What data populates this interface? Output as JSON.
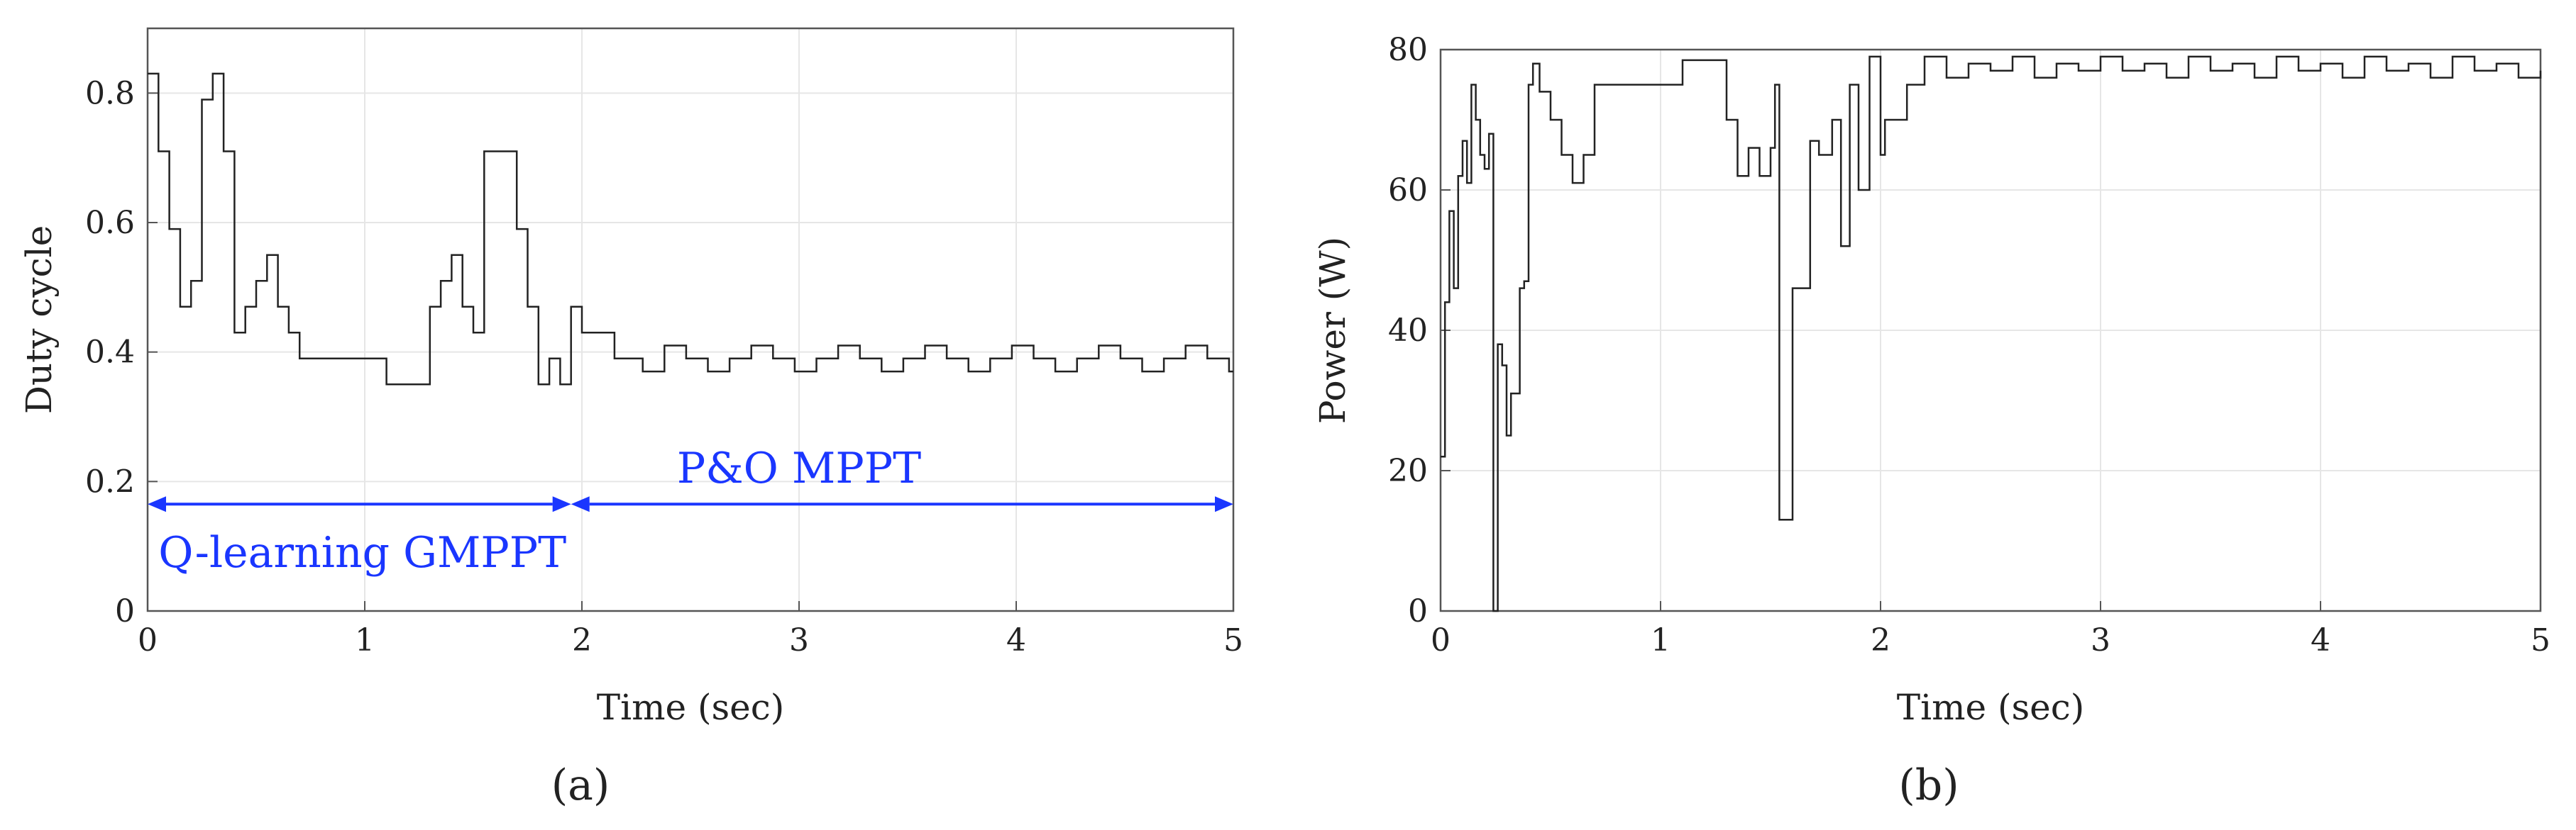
{
  "figure": {
    "panel_labels": [
      "(a)",
      "(b)"
    ],
    "colors": {
      "line": "#222222",
      "grid": "#e6e6e6",
      "annotation": "#1a36ff",
      "axes": "#555555"
    }
  },
  "chart_data": [
    {
      "type": "line",
      "title": "",
      "xlabel": "Time (sec)",
      "ylabel": "Duty cycle",
      "xlim": [
        0,
        5
      ],
      "ylim": [
        0,
        0.9
      ],
      "xticks": [
        0,
        1,
        2,
        3,
        4,
        5
      ],
      "yticks": [
        0,
        0.2,
        0.4,
        0.6,
        0.8
      ],
      "grid": true,
      "step": true,
      "x": [
        0,
        0.05,
        0.1,
        0.15,
        0.2,
        0.25,
        0.3,
        0.35,
        0.4,
        0.45,
        0.5,
        0.55,
        0.6,
        0.65,
        0.7,
        0.75,
        1.1,
        1.3,
        1.35,
        1.4,
        1.45,
        1.5,
        1.55,
        1.6,
        1.7,
        1.75,
        1.8,
        1.85,
        1.9,
        1.95,
        2.0,
        2.05,
        2.15,
        2.2,
        2.28,
        2.38,
        2.48,
        2.58,
        2.68,
        2.78,
        2.88,
        2.98,
        3.08,
        3.18,
        3.28,
        3.38,
        3.48,
        3.58,
        3.68,
        3.78,
        3.88,
        3.98,
        4.08,
        4.18,
        4.28,
        4.38,
        4.48,
        4.58,
        4.68,
        4.78,
        4.88,
        4.98,
        5.0
      ],
      "y": [
        0.83,
        0.71,
        0.59,
        0.47,
        0.51,
        0.79,
        0.83,
        0.71,
        0.43,
        0.47,
        0.51,
        0.55,
        0.47,
        0.43,
        0.39,
        0.39,
        0.35,
        0.47,
        0.51,
        0.55,
        0.47,
        0.43,
        0.71,
        0.71,
        0.59,
        0.47,
        0.35,
        0.39,
        0.35,
        0.47,
        0.43,
        0.43,
        0.39,
        0.39,
        0.37,
        0.41,
        0.39,
        0.37,
        0.39,
        0.41,
        0.39,
        0.37,
        0.39,
        0.41,
        0.39,
        0.37,
        0.39,
        0.41,
        0.39,
        0.37,
        0.39,
        0.41,
        0.39,
        0.37,
        0.39,
        0.41,
        0.39,
        0.37,
        0.39,
        0.41,
        0.39,
        0.37,
        0.37
      ],
      "annotations": [
        {
          "text": "Q-learning GMPPT",
          "x_start": 0,
          "x_end": 1.95,
          "y": 0.165,
          "label_x": 0.05,
          "label_y": 0.09
        },
        {
          "text": "P&O MPPT",
          "x_start": 1.95,
          "x_end": 5,
          "y": 0.165,
          "label_x": 3.0,
          "label_y": 0.22
        }
      ]
    },
    {
      "type": "line",
      "title": "",
      "xlabel": "Time (sec)",
      "ylabel": "Power (W)",
      "xlim": [
        0,
        5
      ],
      "ylim": [
        0,
        80
      ],
      "xticks": [
        0,
        1,
        2,
        3,
        4,
        5
      ],
      "yticks": [
        0,
        20,
        40,
        60,
        80
      ],
      "grid": true,
      "step": true,
      "x": [
        0,
        0.02,
        0.04,
        0.06,
        0.08,
        0.1,
        0.12,
        0.14,
        0.16,
        0.18,
        0.2,
        0.22,
        0.24,
        0.26,
        0.28,
        0.3,
        0.32,
        0.34,
        0.36,
        0.38,
        0.4,
        0.42,
        0.45,
        0.5,
        0.55,
        0.6,
        0.65,
        0.7,
        1.1,
        1.3,
        1.35,
        1.4,
        1.45,
        1.5,
        1.52,
        1.54,
        1.6,
        1.68,
        1.72,
        1.78,
        1.82,
        1.86,
        1.9,
        1.95,
        2.0,
        2.02,
        2.12,
        2.2,
        2.3,
        2.4,
        2.5,
        2.6,
        2.7,
        2.8,
        2.9,
        3.0,
        3.1,
        3.2,
        3.3,
        3.4,
        3.5,
        3.6,
        3.7,
        3.8,
        3.9,
        4.0,
        4.1,
        4.2,
        4.3,
        4.4,
        4.5,
        4.6,
        4.7,
        4.8,
        4.9,
        5.0
      ],
      "y": [
        22,
        44,
        57,
        46,
        62,
        67,
        61,
        75,
        70,
        65,
        63,
        68,
        0,
        38,
        35,
        25,
        31,
        31,
        46,
        47,
        75,
        78,
        74,
        70,
        65,
        61,
        65,
        75,
        78.5,
        70,
        62,
        66,
        62,
        66,
        75,
        13,
        46,
        67,
        65,
        70,
        52,
        75,
        60,
        79,
        65,
        70,
        75,
        79,
        76,
        78,
        77,
        79,
        76,
        78,
        77,
        79,
        77,
        78,
        76,
        79,
        77,
        78,
        76,
        79,
        77,
        78,
        76,
        79,
        77,
        78,
        76,
        79,
        77,
        78,
        76,
        77
      ]
    }
  ]
}
